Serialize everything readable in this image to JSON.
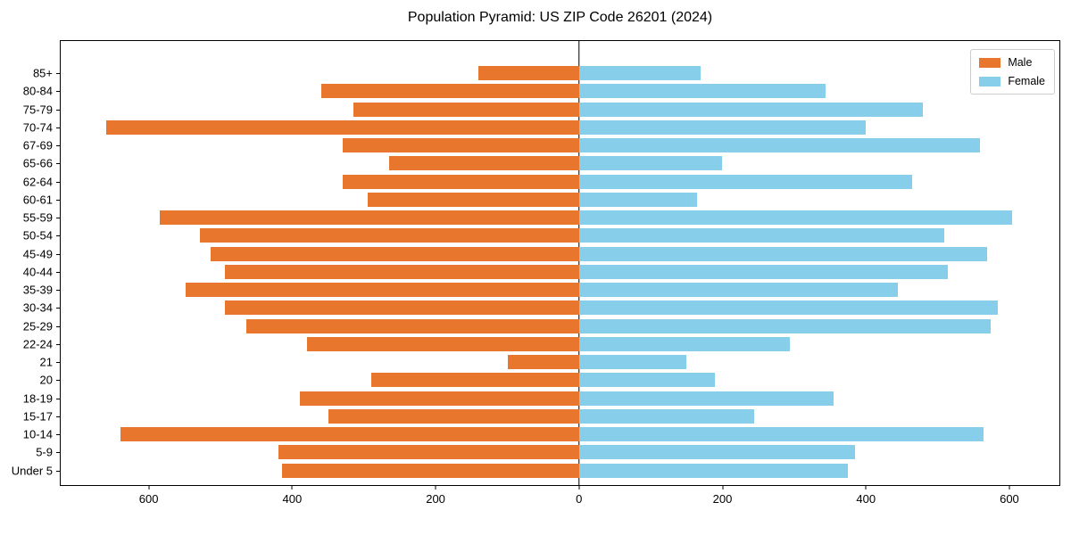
{
  "title": "Population Pyramid: US ZIP Code 26201 (2024)",
  "legend": {
    "male_label": "Male",
    "female_label": "Female",
    "position": "upper right"
  },
  "colors": {
    "male": "#e8762d",
    "female": "#87ceeb",
    "axis": "#000000",
    "background": "#ffffff",
    "legend_border": "#cccccc"
  },
  "chart_data": {
    "type": "bar",
    "variant": "population-pyramid",
    "title": "Population Pyramid: US ZIP Code 26201 (2024)",
    "categories_top_to_bottom": [
      "85+",
      "80-84",
      "75-79",
      "70-74",
      "67-69",
      "65-66",
      "62-64",
      "60-61",
      "55-59",
      "50-54",
      "45-49",
      "40-44",
      "35-39",
      "30-34",
      "25-29",
      "22-24",
      "21",
      "20",
      "18-19",
      "15-17",
      "10-14",
      "5-9",
      "Under 5"
    ],
    "series": [
      {
        "name": "Male",
        "side": "left",
        "color": "#e8762d",
        "values": [
          140,
          360,
          315,
          660,
          330,
          265,
          330,
          295,
          585,
          530,
          515,
          495,
          550,
          495,
          465,
          380,
          100,
          290,
          390,
          350,
          640,
          420,
          415
        ]
      },
      {
        "name": "Female",
        "side": "right",
        "color": "#87ceeb",
        "values": [
          170,
          345,
          480,
          400,
          560,
          200,
          465,
          165,
          605,
          510,
          570,
          515,
          445,
          585,
          575,
          295,
          150,
          190,
          355,
          245,
          565,
          385,
          375
        ]
      }
    ],
    "x_ticks": [
      -600,
      -400,
      -200,
      0,
      200,
      400,
      600
    ],
    "x_tick_labels": [
      "600",
      "400",
      "200",
      "0",
      "200",
      "400",
      "600"
    ],
    "xlim": [
      -724,
      671
    ],
    "zero_line": true,
    "grid": false,
    "xlabel": "",
    "ylabel": ""
  }
}
